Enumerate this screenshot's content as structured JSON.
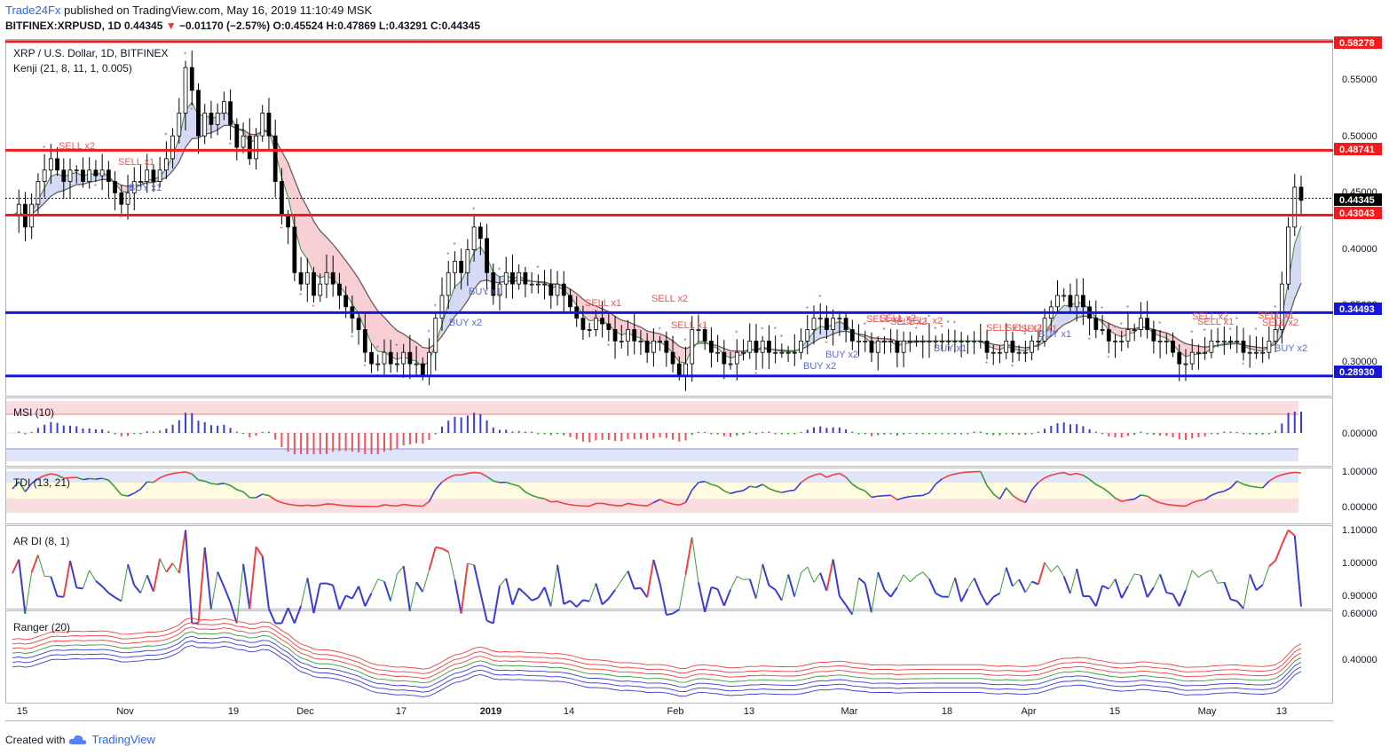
{
  "header": {
    "publisher": "Trade24Fx",
    "published_text": "published on TradingView.com, May 16, 2019 11:10:49 MSK",
    "symbol": "BITFINEX:XRPUSD, 1D",
    "last": "0.44345",
    "change": "−0.01170 (−2.57%)",
    "o_label": "O:",
    "o": "0.45524",
    "h_label": "H:",
    "h": "0.47869",
    "l_label": "L:",
    "l": "0.43291",
    "c_label": "C:",
    "c": "0.44345"
  },
  "footer": {
    "created_with": "Created with",
    "brand": "TradingView"
  },
  "colors": {
    "red_line": "#f21a1a",
    "blue_line": "#1616d6",
    "up_candle": "#ffffff",
    "down_candle": "#000000",
    "sell_label": "#ef5350",
    "buy_label": "#5a6bd6",
    "cloud_bear": "#f5c6cc",
    "cloud_bull": "#cdd4f5"
  },
  "chart_data": [
    {
      "type": "candlestick",
      "title": "XRP / U.S. Dollar, 1D, BITFINEX",
      "indicator": "Kenji (21, 8, 11, 1, 0.005)",
      "x_ticks": [
        "15",
        "Nov",
        "19",
        "Dec",
        "17",
        "2019",
        "14",
        "Feb",
        "13",
        "Mar",
        "18",
        "Apr",
        "15",
        "May",
        "13"
      ],
      "y_ticks": [
        "0.55000",
        "0.50000",
        "0.45000",
        "0.40000",
        "0.35000",
        "0.30000"
      ],
      "ylim": [
        0.272,
        0.585
      ],
      "current_price": "0.44345",
      "levels": [
        {
          "value": 0.58278,
          "label": "0.58278",
          "color": "red"
        },
        {
          "value": 0.48741,
          "label": "0.48741",
          "color": "red"
        },
        {
          "value": 0.43043,
          "label": "0.43043",
          "color": "red"
        },
        {
          "value": 0.34493,
          "label": "0.34493",
          "color": "blue"
        },
        {
          "value": 0.2893,
          "label": "0.28930",
          "color": "blue"
        }
      ],
      "closes": [
        0.43,
        0.44,
        0.42,
        0.44,
        0.46,
        0.47,
        0.48,
        0.47,
        0.46,
        0.47,
        0.47,
        0.46,
        0.47,
        0.465,
        0.47,
        0.46,
        0.45,
        0.44,
        0.45,
        0.46,
        0.46,
        0.47,
        0.46,
        0.47,
        0.48,
        0.5,
        0.52,
        0.56,
        0.54,
        0.5,
        0.52,
        0.51,
        0.52,
        0.53,
        0.51,
        0.49,
        0.5,
        0.48,
        0.5,
        0.52,
        0.5,
        0.46,
        0.43,
        0.42,
        0.38,
        0.37,
        0.38,
        0.36,
        0.37,
        0.38,
        0.37,
        0.36,
        0.35,
        0.34,
        0.33,
        0.31,
        0.3,
        0.3,
        0.31,
        0.3,
        0.3,
        0.31,
        0.3,
        0.3,
        0.29,
        0.31,
        0.34,
        0.36,
        0.38,
        0.39,
        0.38,
        0.4,
        0.42,
        0.41,
        0.38,
        0.36,
        0.37,
        0.38,
        0.37,
        0.38,
        0.37,
        0.37,
        0.37,
        0.37,
        0.36,
        0.37,
        0.36,
        0.35,
        0.34,
        0.33,
        0.33,
        0.34,
        0.335,
        0.33,
        0.32,
        0.32,
        0.33,
        0.32,
        0.32,
        0.31,
        0.32,
        0.32,
        0.31,
        0.3,
        0.29,
        0.3,
        0.33,
        0.33,
        0.32,
        0.31,
        0.31,
        0.3,
        0.3,
        0.31,
        0.31,
        0.32,
        0.31,
        0.32,
        0.31,
        0.31,
        0.31,
        0.31,
        0.31,
        0.32,
        0.33,
        0.34,
        0.34,
        0.33,
        0.34,
        0.34,
        0.33,
        0.32,
        0.32,
        0.32,
        0.31,
        0.32,
        0.32,
        0.32,
        0.31,
        0.32,
        0.32,
        0.32,
        0.32,
        0.32,
        0.32,
        0.32,
        0.32,
        0.32,
        0.32,
        0.32,
        0.32,
        0.32,
        0.31,
        0.31,
        0.31,
        0.32,
        0.31,
        0.31,
        0.31,
        0.32,
        0.32,
        0.34,
        0.35,
        0.36,
        0.36,
        0.35,
        0.36,
        0.35,
        0.34,
        0.33,
        0.33,
        0.32,
        0.32,
        0.32,
        0.33,
        0.33,
        0.34,
        0.33,
        0.32,
        0.32,
        0.32,
        0.31,
        0.3,
        0.3,
        0.31,
        0.31,
        0.31,
        0.32,
        0.32,
        0.32,
        0.32,
        0.32,
        0.31,
        0.31,
        0.31,
        0.31,
        0.32,
        0.33,
        0.37,
        0.42,
        0.455,
        0.44345
      ],
      "buy_labels": [
        "BUY x1",
        "BUY x1",
        "BUY x2",
        "BUY x2",
        "BUY x2",
        "BUY x1",
        "BUY x1",
        "BUY x2"
      ],
      "sell_labels": [
        "SELL x2",
        "SELL x1",
        "SELL x1",
        "SELL x2",
        "SELL x1",
        "SELL x1",
        "SELL x2",
        "SELL x2",
        "SELL x2",
        "SELL x1",
        "SELL x2",
        "SELL x1",
        "SELL x2",
        "SELL x1",
        "SELL x1",
        "SELL x2"
      ]
    },
    {
      "type": "bar",
      "title": "MSI (10)",
      "y_ticks": [
        "0.00000"
      ]
    },
    {
      "type": "line",
      "title": "TDI (13, 21)",
      "y_ticks": [
        "1.00000",
        "0.00000"
      ]
    },
    {
      "type": "line",
      "title": "AR DI (8, 1)",
      "y_ticks": [
        "1.10000",
        "1.00000",
        "0.90000"
      ]
    },
    {
      "type": "line",
      "title": "Ranger (20)",
      "y_ticks": [
        "0.60000",
        "0.40000"
      ]
    }
  ]
}
